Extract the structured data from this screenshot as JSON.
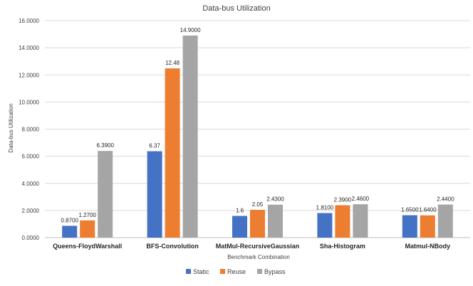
{
  "chart_data": {
    "type": "bar",
    "title": "Data-bus Utilization",
    "xlabel": "Benchmark Combination",
    "ylabel": "Data-bus Utilization",
    "ylim": [
      0,
      16
    ],
    "yticks": [
      "0.0000",
      "2.0000",
      "4.0000",
      "6.0000",
      "8.0000",
      "10.0000",
      "12.0000",
      "14.0000",
      "16.0000"
    ],
    "grid": true,
    "legend_position": "bottom",
    "categories": [
      "Queens-FloydWarshall",
      "BFS-Convolution",
      "MatMul-RecursiveGaussian",
      "Sha-Histogram",
      "Matmul-NBody"
    ],
    "series": [
      {
        "name": "Static",
        "color": "#4472C4",
        "values": [
          0.87,
          6.37,
          1.6,
          1.81,
          1.65
        ],
        "labels": [
          "0.8700",
          "6.37",
          "1.6",
          "1.8100",
          "1.6500"
        ]
      },
      {
        "name": "Reuse",
        "color": "#ED7D31",
        "values": [
          1.27,
          12.48,
          2.05,
          2.39,
          1.64
        ],
        "labels": [
          "1.2700",
          "12.48",
          "2.05",
          "2.3900",
          "1.6400"
        ]
      },
      {
        "name": "Bypass",
        "color": "#A5A5A5",
        "values": [
          6.39,
          14.9,
          2.43,
          2.46,
          2.44
        ],
        "labels": [
          "6.3900",
          "14.9000",
          "2.4300",
          "2.4600",
          "2.4400"
        ]
      }
    ]
  }
}
